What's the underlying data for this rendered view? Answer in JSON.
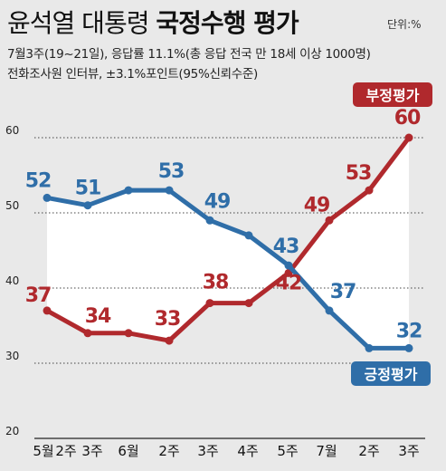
{
  "header": {
    "title_normal": "윤석열 대통령",
    "title_bold": "국정수행 평가",
    "unit": "단위:%",
    "subtitle_1": "7월3주(19~21일), 응답률 11.1%(총 응답 전국 만 18세 이상 1000명)",
    "subtitle_2": "전화조사원 인터뷰, ±3.1%포인트(95%신뢰수준)"
  },
  "colors": {
    "background": "#e9e9e9",
    "band": "#ffffff",
    "positive": "#2f6ea8",
    "negative": "#b0292d",
    "grid": "#444444"
  },
  "chart_data": {
    "type": "line",
    "categories": [
      "5월2주",
      "3주",
      "6월",
      "2주",
      "3주",
      "4주",
      "5주",
      "7월",
      "2주",
      "3주"
    ],
    "x_tick_labels": [
      "5월",
      "2주",
      "3주",
      "6월",
      "2주",
      "3주",
      "4주",
      "5주",
      "7월",
      "2주",
      "3주"
    ],
    "series": [
      {
        "name": "긍정평가",
        "color": "#2f6ea8",
        "values": [
          52,
          51,
          53,
          53,
          49,
          47,
          43,
          37,
          32,
          32
        ],
        "data_labels": [
          "52",
          "51",
          "",
          "53",
          "49",
          "",
          "43",
          "37",
          "",
          "32"
        ]
      },
      {
        "name": "부정평가",
        "color": "#b0292d",
        "values": [
          37,
          34,
          34,
          33,
          38,
          38,
          42,
          49,
          53,
          60
        ],
        "data_labels": [
          "37",
          "34",
          "",
          "33",
          "38",
          "",
          "42",
          "49",
          "53",
          "60"
        ]
      }
    ],
    "ylim": [
      20,
      60
    ],
    "yticks": [
      "20",
      "30",
      "40",
      "50",
      "60"
    ],
    "grid": true,
    "legend": "series labels at line ends (부정평가 top-right, 긍정평가 bottom-right)"
  }
}
